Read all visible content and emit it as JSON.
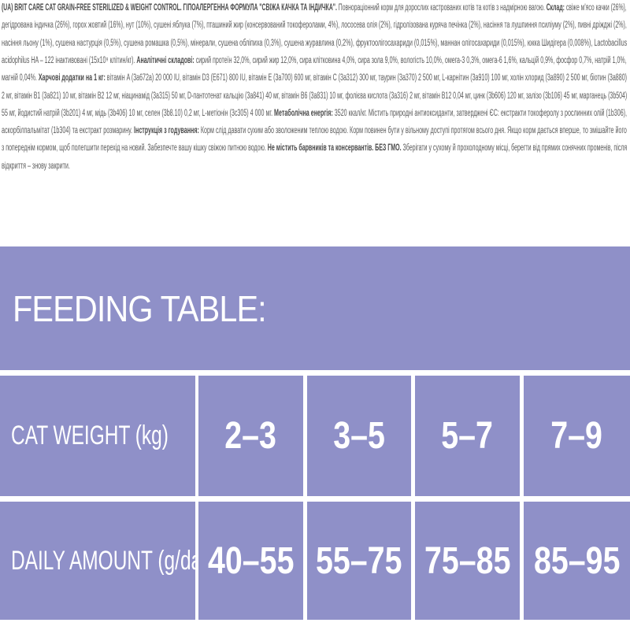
{
  "label_text": {
    "lines": [
      [
        {
          "t": "(UA) BRIT CARE CAT GRAIN-FREE STERILIZED & WEIGHT CONTROL. ГІПОАЛЕРГЕННА ФОРМУЛА \"СВІЖА КАЧКА ТА ІНДИЧКА\".",
          "b": true
        },
        {
          "t": " Повнораціонний корм для дорослих кастрованих котів та котів з надмірною вагою. ",
          "b": false
        },
        {
          "t": "Склад:",
          "b": true
        },
        {
          "t": " свіже м'ясо качки (26%),",
          "b": false
        }
      ],
      [
        {
          "t": "дегідрована індичка (26%), горох жовтий (16%), нут (10%), сушені яблука (7%), пташиний жир (консервований токоферолами, 4%), лососева олія (2%), гідролізована куряча печінка (2%), насіння та лушпиння псиліуму (2%), пивні дріжджі (2%),",
          "b": false
        }
      ],
      [
        {
          "t": "насіння льону (1%), сушена настурція (0,5%), сушена ромашка (0,5%), мінерали, сушена обліпиха (0,3%), сушена журавлина (0,2%), фруктоолігосахариди (0,015%), маннан олігосахариди (0,015%), юкка Шидігера (0,008%), Lactobacillus",
          "b": false
        }
      ],
      [
        {
          "t": "acidophilus HA – 122 інактивовані (15x10⁹ клітин/кг). ",
          "b": false
        },
        {
          "t": "Аналітичні складові:",
          "b": true
        },
        {
          "t": " сирий протеїн 32,0%, сирий жир 12,0%, сира клітковина 4,0%, сира зола 9,0%, вологість 10,0%, омега-3 0,3%, омега-6 1,6%, кальцій 0,9%, фосфор 0,7%, натрій 1,0%,",
          "b": false
        }
      ],
      [
        {
          "t": "магній 0,04%. ",
          "b": false
        },
        {
          "t": "Харчові додатки на 1 кг:",
          "b": true
        },
        {
          "t": " вітамін A (3a672a) 20 000 IU, вітамін D3 (E671) 800 IU, вітамін E (3a700) 600 мг, вітамін C (3a312) 300 мг, таурин (3a370) 2 500 мг, L-карнітин (3a910) 100 мг, холін хлорид (3a890) 2 500 мг, біотин (3a880)",
          "b": false
        }
      ],
      [
        {
          "t": "2 мг, вітамін B1 (3a821) 10 мг, вітамін B2 12 мг, ніацинамід (3a315) 50 мг, D-пантотенат кальцію (3a841) 40 мг, вітамін B6 (3a831) 10 мг, фолієва кислота (3a316) 2 мг, вітамін B12 0,04 мг, цинк (3b606) 120 мг, залізо (3b106) 45 мг, марганець (3b504)",
          "b": false
        }
      ],
      [
        {
          "t": "55 мг, йодистий натрій (3b201) 4 мг, мідь (3b406) 10 мг, селен (3b8.10) 0,2 мг, L-метіонін (3c305) 4 000 мг. ",
          "b": false
        },
        {
          "t": "Метаболічна енергія:",
          "b": true
        },
        {
          "t": " 3520 ккал/кг. Містить природні антиоксиданти, затверджені ЄС: екстракти токоферолу з рослинних олій (1b306),",
          "b": false
        }
      ],
      [
        {
          "t": "аскорбілпальмітат (1b304) та екстракт розмарину. ",
          "b": false
        },
        {
          "t": "Інструкція з годування:",
          "b": true
        },
        {
          "t": " Корм слід давати сухим або зволоженим теплою водою. Корм повинен бути у вільному доступі протягом всього дня. Якщо корм дається вперше, то змішайте його",
          "b": false
        }
      ],
      [
        {
          "t": "з попереднім кормом, щоб полегшити перехід на новий. Забезпечте вашу кішку свіжою питною водою. ",
          "b": false
        },
        {
          "t": "Не містить барвників та консервантів. БЕЗ ГМО.",
          "b": true
        },
        {
          "t": " Зберігати у сухому й прохолодному місці, берегти від прямих сонячних променів, після",
          "b": false
        }
      ],
      [
        {
          "t": "відкриття – знову закрити.",
          "b": false
        }
      ]
    ]
  },
  "feeding_table": {
    "title": "FEEDING TABLE:",
    "color": "#8f90c8",
    "rows": [
      {
        "label": "CAT WEIGHT  (kg)",
        "values": [
          "2–3",
          "3–5",
          "5–7",
          "7–9"
        ]
      },
      {
        "label": "DAILY AMOUNT  (g/day)",
        "values": [
          "40–55",
          "55–75",
          "75–85",
          "85–95"
        ]
      }
    ]
  }
}
